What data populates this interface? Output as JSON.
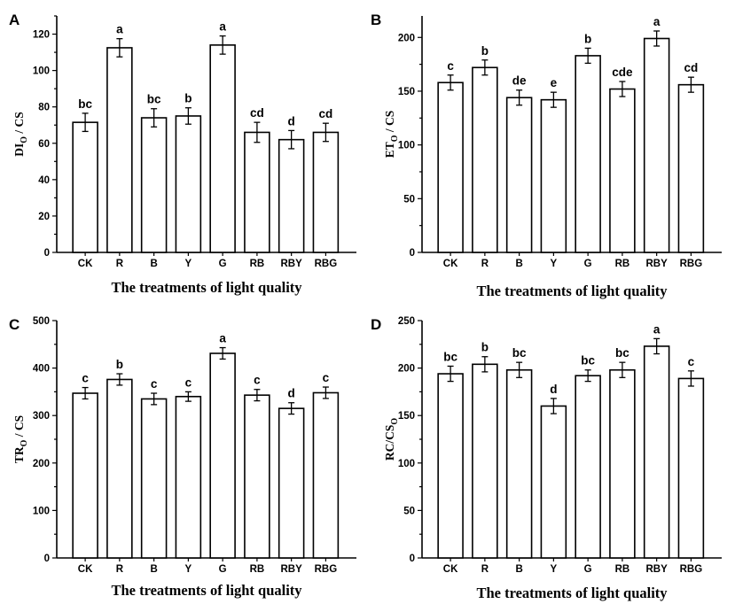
{
  "chart_data": [
    {
      "type": "bar",
      "panel": "A",
      "ylabel_main": "DI",
      "ylabel_sub": "O",
      "ylabel_tail": " / CS",
      "xlabel": "The treatments of light quality",
      "categories": [
        "CK",
        "R",
        "B",
        "Y",
        "G",
        "RB",
        "RBY",
        "RBG"
      ],
      "values": [
        71.5,
        112.5,
        74,
        75,
        114,
        66,
        62,
        66
      ],
      "errors": [
        5,
        5,
        5,
        4.5,
        5,
        5.5,
        5,
        5
      ],
      "significance": [
        "bc",
        "a",
        "bc",
        "b",
        "a",
        "cd",
        "d",
        "cd"
      ],
      "ylim": [
        0,
        130
      ],
      "yticks": [
        0,
        20,
        40,
        60,
        80,
        100,
        120
      ]
    },
    {
      "type": "bar",
      "panel": "B",
      "ylabel_main": "ET",
      "ylabel_sub": "O",
      "ylabel_tail": " / CS",
      "xlabel": "The treatments of light quality",
      "categories": [
        "CK",
        "R",
        "B",
        "Y",
        "G",
        "RB",
        "RBY",
        "RBG"
      ],
      "values": [
        158,
        172,
        144,
        142,
        183,
        152,
        199,
        156
      ],
      "errors": [
        7,
        7,
        7,
        7,
        7,
        7,
        7,
        7
      ],
      "significance": [
        "c",
        "b",
        "de",
        "e",
        "b",
        "cde",
        "a",
        "cd"
      ],
      "ylim": [
        0,
        220
      ],
      "yticks": [
        0,
        50,
        100,
        150,
        200
      ]
    },
    {
      "type": "bar",
      "panel": "C",
      "ylabel_main": "TR",
      "ylabel_sub": "O",
      "ylabel_tail": " / CS",
      "xlabel": "The treatments of light quality",
      "categories": [
        "CK",
        "R",
        "B",
        "Y",
        "G",
        "RB",
        "RBY",
        "RBG"
      ],
      "values": [
        347,
        376,
        335,
        340,
        431,
        343,
        315,
        348
      ],
      "errors": [
        12,
        12,
        12,
        10,
        12,
        12,
        12,
        12
      ],
      "significance": [
        "c",
        "b",
        "c",
        "c",
        "a",
        "c",
        "d",
        "c"
      ],
      "ylim": [
        0,
        500
      ],
      "yticks": [
        0,
        100,
        200,
        300,
        400,
        500
      ]
    },
    {
      "type": "bar",
      "panel": "D",
      "ylabel_main": "RC/CS",
      "ylabel_sub": "O",
      "ylabel_tail": "",
      "xlabel": "The treatments of light quality",
      "categories": [
        "CK",
        "R",
        "B",
        "Y",
        "G",
        "RB",
        "RBY",
        "RBG"
      ],
      "values": [
        194,
        204,
        198,
        160,
        192,
        198,
        223,
        189
      ],
      "errors": [
        8,
        8,
        8,
        8,
        6,
        8,
        8,
        8
      ],
      "significance": [
        "bc",
        "b",
        "bc",
        "d",
        "bc",
        "bc",
        "a",
        "c"
      ],
      "ylim": [
        0,
        250
      ],
      "yticks": [
        0,
        50,
        100,
        150,
        200,
        250
      ]
    }
  ]
}
